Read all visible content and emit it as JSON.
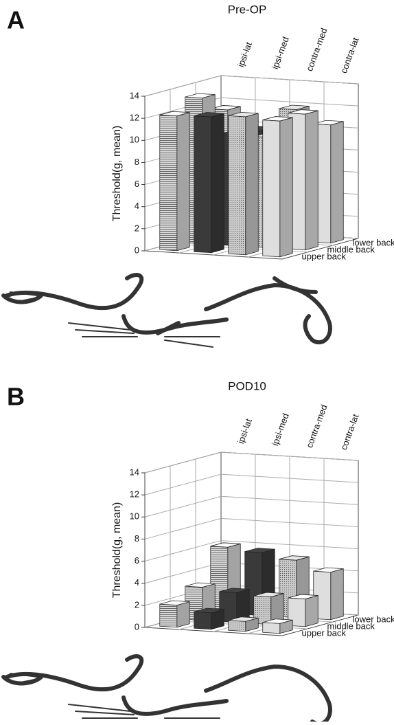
{
  "chart_data": [
    {
      "type": "bar3d",
      "panel_label": "A",
      "title": "Pre-OP",
      "y_label": "Threshold(g, mean)",
      "categories": [
        "upper back",
        "middle back",
        "lower back"
      ],
      "series": [
        {
          "name": "ipsi-lat",
          "color": "#d9d9d9",
          "pattern": "lines",
          "values": [
            12.2,
            13.2,
            11.5
          ]
        },
        {
          "name": "ipsi-med",
          "color": "#3a3a3a",
          "pattern": "none",
          "values": [
            12.3,
            10,
            9.8
          ]
        },
        {
          "name": "contra-med",
          "color": "#c9c9c9",
          "pattern": "dots",
          "values": [
            12.5,
            10,
            11.9
          ]
        },
        {
          "name": "contra-lat",
          "color": "#dedede",
          "pattern": "none",
          "values": [
            12.3,
            12.3,
            10.7
          ]
        }
      ],
      "ylim": [
        0,
        14
      ],
      "yticks": [
        0,
        2,
        4,
        6,
        8,
        10,
        12,
        14
      ],
      "grid": true
    },
    {
      "type": "bar3d",
      "panel_label": "B",
      "title": "POD10",
      "y_label": "Threshold(g, mean)",
      "categories": [
        "upper back",
        "middle back",
        "lower back"
      ],
      "series": [
        {
          "name": "ipsi-lat",
          "color": "#d9d9d9",
          "pattern": "lines",
          "values": [
            2,
            3,
            6
          ]
        },
        {
          "name": "ipsi-med",
          "color": "#3a3a3a",
          "pattern": "none",
          "values": [
            1.5,
            2.7,
            5.7
          ]
        },
        {
          "name": "contra-med",
          "color": "#c9c9c9",
          "pattern": "dots",
          "values": [
            0.9,
            2.5,
            5.2
          ]
        },
        {
          "name": "contra-lat",
          "color": "#dedede",
          "pattern": "none",
          "values": [
            0.9,
            2.5,
            4.3
          ]
        }
      ],
      "ylim": [
        0,
        14
      ],
      "yticks": [
        0,
        2,
        4,
        6,
        8,
        10,
        12,
        14
      ],
      "grid": true
    }
  ]
}
